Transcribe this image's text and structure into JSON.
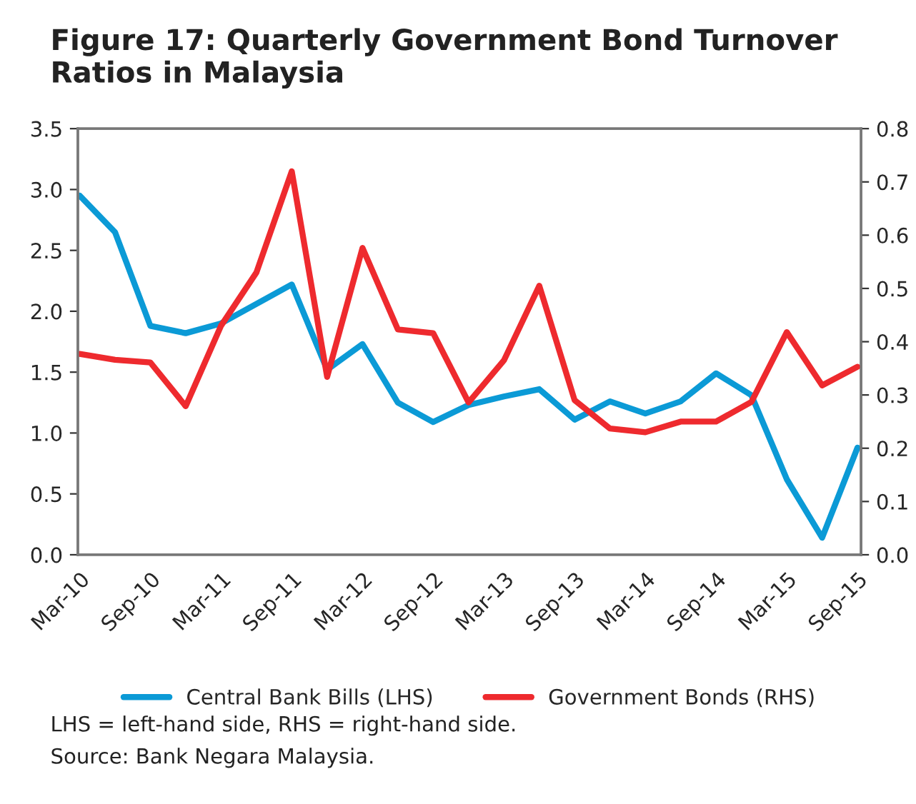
{
  "chart_data": {
    "type": "line",
    "title": "Figure 17: Quarterly Government Bond Turnover Ratios in Malaysia",
    "categories": [
      "Mar-10",
      null,
      "Sep-10",
      null,
      "Mar-11",
      null,
      "Sep-11",
      null,
      "Mar-12",
      null,
      "Sep-12",
      null,
      "Mar-13",
      null,
      "Sep-13",
      null,
      "Mar-14",
      null,
      "Sep-14",
      null,
      "Mar-15",
      null,
      "Sep-15"
    ],
    "series": [
      {
        "name": "Central Bank Bills (LHS)",
        "color": "#0b9ad6",
        "values": [
          2.95,
          2.65,
          1.88,
          1.82,
          1.9,
          2.06,
          2.22,
          1.52,
          1.73,
          1.25,
          1.09,
          1.23,
          1.3,
          1.36,
          1.11,
          1.26,
          1.16,
          1.26,
          1.49,
          1.31,
          0.62,
          0.14,
          0.88
        ]
      },
      {
        "name": "Government Bonds (RHS)",
        "color": "#ee2a2e",
        "axis": "y2",
        "values": [
          0.377,
          0.366,
          0.361,
          0.279,
          0.43,
          0.53,
          0.72,
          0.334,
          0.576,
          0.423,
          0.416,
          0.286,
          0.365,
          0.505,
          0.29,
          0.237,
          0.23,
          0.25,
          0.25,
          0.287,
          0.418,
          0.318,
          0.353
        ]
      }
    ],
    "ylim": [
      0,
      3.5
    ],
    "yticks": [
      {
        "value": 0,
        "label": "0.0"
      },
      0.5,
      {
        "value": 1,
        "label": "1.0"
      },
      1.5,
      {
        "value": 2,
        "label": "2.0"
      },
      2.5,
      {
        "value": 3,
        "label": "3.0"
      },
      3.5
    ],
    "y2lim": [
      0,
      0.8
    ],
    "y2ticks": [
      {
        "value": 0,
        "label": "0.0"
      },
      0.1,
      0.2,
      0.3,
      0.4,
      0.5,
      0.6,
      0.7,
      0.8
    ],
    "grid": false,
    "legend": "bottom",
    "marker": "none",
    "line_style": "solid",
    "annotations": [
      "LHS = left-hand side, RHS = right-hand side.",
      "Source: Bank Negara Malaysia."
    ]
  }
}
